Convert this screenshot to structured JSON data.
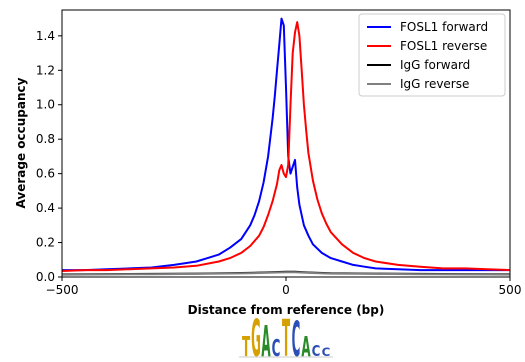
{
  "chart_data": {
    "type": "line",
    "title": "",
    "xlabel": "Distance from reference (bp)",
    "ylabel": "Average occupancy",
    "xlim": [
      -500,
      500
    ],
    "ylim": [
      0,
      1.55
    ],
    "xticks": [
      -500,
      0,
      500
    ],
    "xtick_labels": [
      "−500",
      "0",
      "500"
    ],
    "yticks": [
      0.0,
      0.2,
      0.4,
      0.6,
      0.8,
      1.0,
      1.2,
      1.4
    ],
    "ytick_labels": [
      "0.0",
      "0.2",
      "0.4",
      "0.6",
      "0.8",
      "1.0",
      "1.2",
      "1.4"
    ],
    "grid": false,
    "legend_position": "top-right",
    "series": [
      {
        "name": "FOSL1 forward",
        "color": "#0000ff",
        "x": [
          -500,
          -450,
          -400,
          -350,
          -300,
          -250,
          -200,
          -175,
          -150,
          -125,
          -100,
          -90,
          -80,
          -70,
          -60,
          -50,
          -40,
          -30,
          -25,
          -20,
          -15,
          -10,
          -5,
          0,
          5,
          10,
          15,
          20,
          25,
          30,
          40,
          50,
          60,
          80,
          100,
          125,
          150,
          175,
          200,
          250,
          300,
          350,
          400,
          450,
          500
        ],
        "y": [
          0.04,
          0.04,
          0.045,
          0.05,
          0.055,
          0.07,
          0.09,
          0.11,
          0.13,
          0.17,
          0.22,
          0.26,
          0.3,
          0.36,
          0.44,
          0.55,
          0.7,
          0.92,
          1.05,
          1.2,
          1.35,
          1.5,
          1.46,
          1.1,
          0.7,
          0.6,
          0.64,
          0.68,
          0.52,
          0.42,
          0.3,
          0.24,
          0.19,
          0.14,
          0.11,
          0.09,
          0.07,
          0.06,
          0.05,
          0.045,
          0.04,
          0.04,
          0.04,
          0.04,
          0.04
        ]
      },
      {
        "name": "FOSL1 reverse",
        "color": "#ff0000",
        "x": [
          -500,
          -450,
          -400,
          -350,
          -300,
          -250,
          -200,
          -150,
          -125,
          -100,
          -80,
          -60,
          -50,
          -40,
          -30,
          -20,
          -15,
          -10,
          -5,
          0,
          5,
          10,
          15,
          20,
          25,
          30,
          35,
          40,
          45,
          50,
          60,
          70,
          80,
          90,
          100,
          125,
          150,
          175,
          200,
          250,
          300,
          350,
          400,
          450,
          500
        ],
        "y": [
          0.035,
          0.04,
          0.04,
          0.045,
          0.05,
          0.055,
          0.065,
          0.09,
          0.11,
          0.14,
          0.18,
          0.24,
          0.29,
          0.36,
          0.44,
          0.54,
          0.62,
          0.65,
          0.6,
          0.58,
          0.65,
          1.0,
          1.3,
          1.42,
          1.48,
          1.4,
          1.2,
          1.0,
          0.85,
          0.72,
          0.56,
          0.45,
          0.37,
          0.31,
          0.26,
          0.19,
          0.14,
          0.11,
          0.09,
          0.07,
          0.06,
          0.05,
          0.05,
          0.045,
          0.04
        ]
      },
      {
        "name": "IgG forward",
        "color": "#000000",
        "x": [
          -500,
          -400,
          -300,
          -200,
          -100,
          -50,
          0,
          20,
          50,
          100,
          200,
          300,
          400,
          500
        ],
        "y": [
          0.015,
          0.017,
          0.018,
          0.02,
          0.023,
          0.026,
          0.03,
          0.03,
          0.026,
          0.022,
          0.02,
          0.018,
          0.017,
          0.016
        ]
      },
      {
        "name": "IgG reverse",
        "color": "#808080",
        "x": [
          -500,
          -400,
          -300,
          -200,
          -100,
          -50,
          0,
          20,
          50,
          100,
          200,
          300,
          400,
          500
        ],
        "y": [
          0.013,
          0.015,
          0.016,
          0.018,
          0.021,
          0.024,
          0.028,
          0.028,
          0.024,
          0.02,
          0.018,
          0.016,
          0.015,
          0.014
        ]
      }
    ]
  },
  "motif_logo": {
    "letters": [
      {
        "char": "T",
        "color": "#d5a000",
        "height": 0.55
      },
      {
        "char": "G",
        "color": "#d5a000",
        "height": 1.0
      },
      {
        "char": "A",
        "color": "#2a8a2a",
        "height": 0.85
      },
      {
        "char": "C",
        "color": "#2c4fb5",
        "height": 0.45
      },
      {
        "char": "T",
        "color": "#d5a000",
        "height": 1.0
      },
      {
        "char": "C",
        "color": "#2c4fb5",
        "height": 0.95
      },
      {
        "char": "A",
        "color": "#2a8a2a",
        "height": 0.55
      },
      {
        "char": "C",
        "color": "#2c4fb5",
        "height": 0.3
      },
      {
        "char": "C",
        "color": "#2c4fb5",
        "height": 0.22
      }
    ]
  }
}
